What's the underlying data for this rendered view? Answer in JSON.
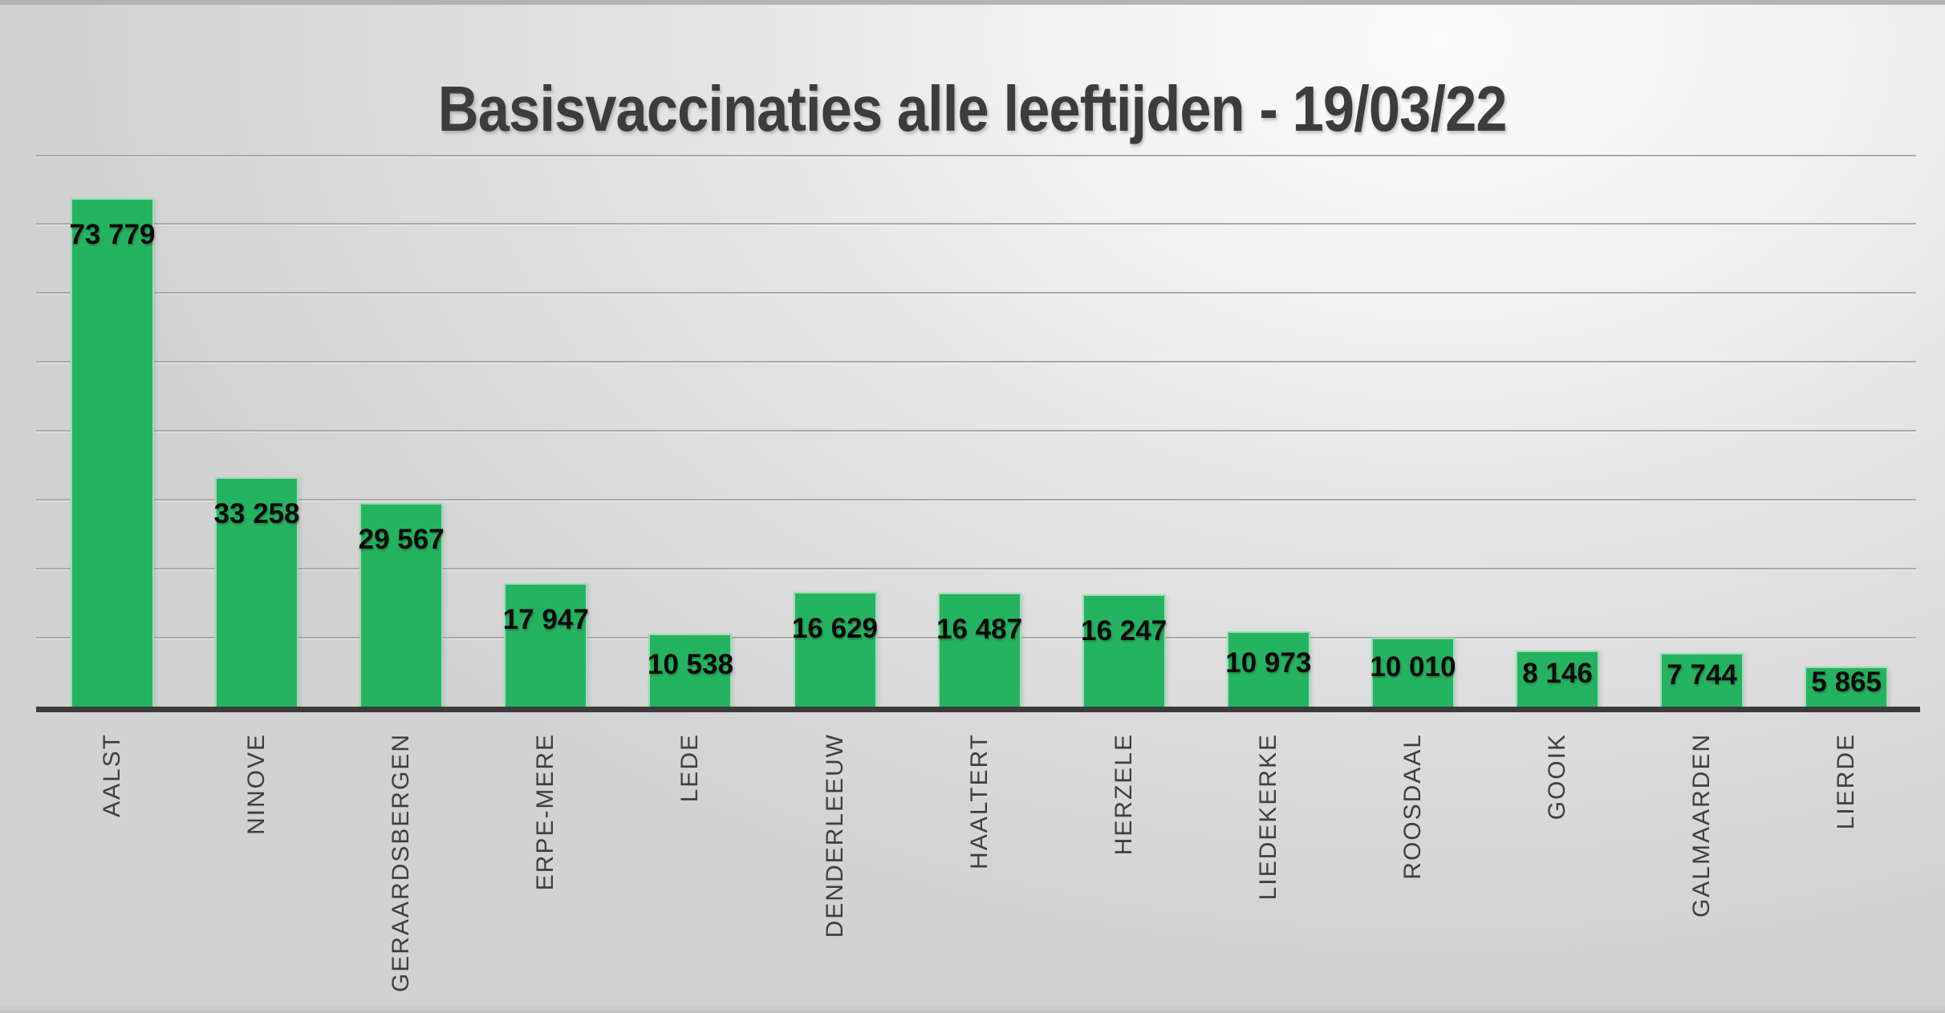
{
  "slide": {
    "title": "Basisvaccinaties alle leeftijden - 19/03/22"
  },
  "chart_data": {
    "type": "bar",
    "title": "Basisvaccinaties alle leeftijden - 19/03/22",
    "categories": [
      "AALST",
      "NINOVE",
      "GERAARDSBERGEN",
      "ERPE-MERE",
      "LEDE",
      "DENDERLEEUW",
      "HAALTERT",
      "HERZELE",
      "LIEDEKERKE",
      "ROOSDAAL",
      "GOOIK",
      "GALMAARDEN",
      "LIERDE"
    ],
    "values": [
      73779,
      33258,
      29567,
      17947,
      10538,
      16629,
      16487,
      16247,
      10973,
      10010,
      8146,
      7744,
      5865
    ],
    "values_formatted": [
      "73 779",
      "33 258",
      "29 567",
      "17 947",
      "10 538",
      "16 629",
      "16 487",
      "16 247",
      "10 973",
      "10 010",
      "8 146",
      "7 744",
      "5 865"
    ],
    "xlabel": "",
    "ylabel": "",
    "ylim": [
      0,
      80000
    ],
    "gridline_step": 10000,
    "y_tick_labels_visible": false,
    "grid": "horizontal",
    "legend": "none",
    "data_label_position": "inside-end",
    "category_label_rotation": -90
  },
  "colors": {
    "bar_fill": "#26b361",
    "gridline": "#a9a9a9",
    "axis_line": "#3b3b3b",
    "title_text": "#3c3c3c",
    "category_text": "#3f3f3f",
    "value_text": "#0a0a0a",
    "background_light": "#fbfbfb",
    "background_dark": "#d2d2d2"
  }
}
